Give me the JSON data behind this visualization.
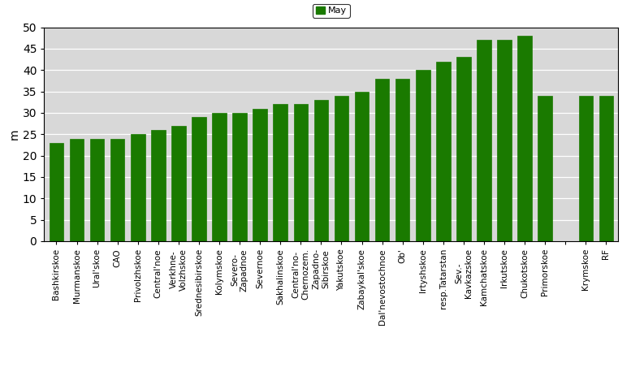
{
  "categories": [
    "Bashkirskoe",
    "Murmanskoe",
    "Ural'skoe",
    "CAO",
    "Privolzhskoe",
    "Central'noe",
    "Verkhne-\nVolzhskoe",
    "Srednesibirskoe",
    "Kolymskoe",
    "Severo-\nZapadnoe",
    "Severnoe",
    "Sakhalinskoe",
    "Central'no-\nChernozem.",
    "Zapadno-\nSibirskoe",
    "Yakutskoe",
    "Zabaykal'skoe",
    "Dal'nevostochnoe",
    "Ob'",
    "Irtyshskoe",
    "resp.Tatarstan",
    "Sev.-\nKavkazskoe",
    "Kamchatskoe",
    "Irkutskoe",
    "Chukotskoe",
    "Primorskoe",
    "",
    "Krymskoe",
    "RF"
  ],
  "values": [
    23,
    24,
    24,
    24,
    25,
    26,
    27,
    29,
    30,
    30,
    31,
    32,
    32,
    33,
    34,
    35,
    38,
    38,
    40,
    42,
    43,
    47,
    47,
    48,
    34,
    0,
    34,
    34
  ],
  "bar_color": "#1a7a00",
  "ylabel": "m",
  "ylim": [
    0,
    50
  ],
  "yticks": [
    0,
    5,
    10,
    15,
    20,
    25,
    30,
    35,
    40,
    45,
    50
  ],
  "legend_label": "May",
  "legend_color": "#1a7a00",
  "background_color": "#d8d8d8",
  "figure_color": "#ffffff"
}
